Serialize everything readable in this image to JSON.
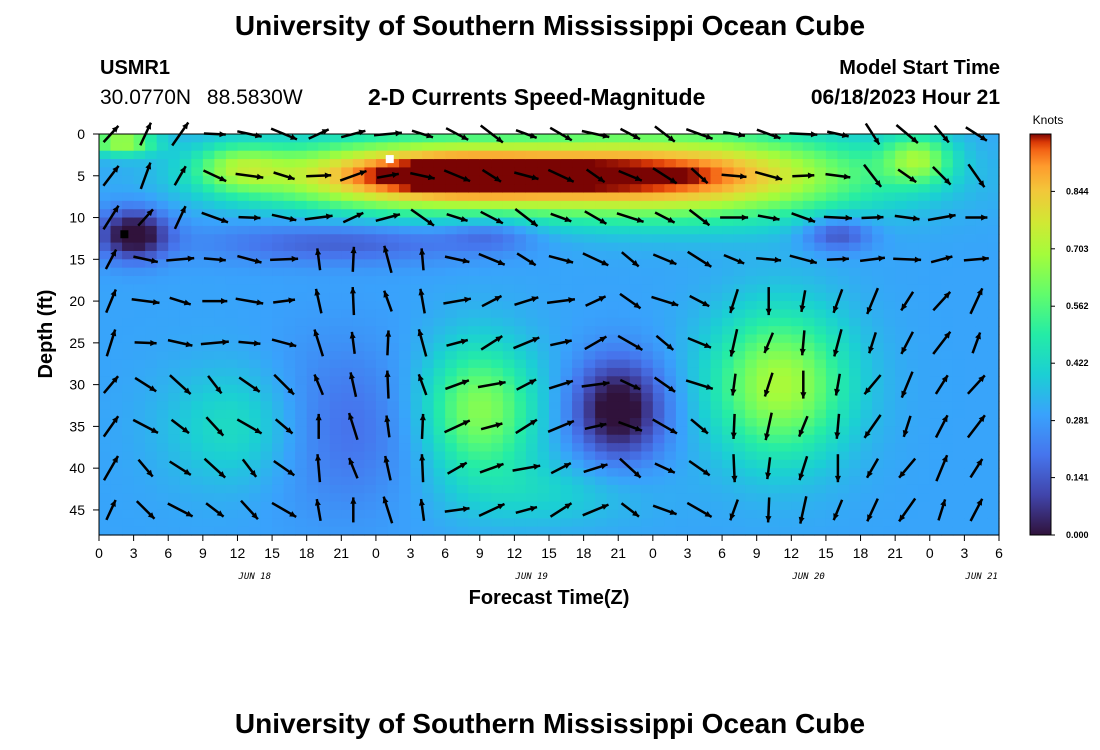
{
  "header": {
    "title": "University of Southern Mississippi Ocean Cube",
    "station": "USMR1",
    "lat": "30.0770N",
    "lon": "88.5830W",
    "subtitle": "2-D Currents Speed-Magnitude",
    "model_start_label": "Model Start Time",
    "model_start_value": "06/18/2023 Hour 21"
  },
  "footer": {
    "title": "University of Southern Mississippi Ocean Cube"
  },
  "chart_data": {
    "type": "heatmap",
    "title": "2-D Currents Speed-Magnitude",
    "xlabel": "Forecast Time(Z)",
    "ylabel": "Depth (ft)",
    "x_tick_labels": [
      "0",
      "3",
      "6",
      "9",
      "12",
      "15",
      "18",
      "21",
      "0",
      "3",
      "6",
      "9",
      "12",
      "15",
      "18",
      "21",
      "0",
      "3",
      "6",
      "9",
      "12",
      "15",
      "18",
      "21",
      "0",
      "3",
      "6"
    ],
    "date_labels": [
      {
        "label": "JUN 18",
        "tick_index": 4
      },
      {
        "label": "JUN 19",
        "tick_index": 12
      },
      {
        "label": "JUN 20",
        "tick_index": 20
      },
      {
        "label": "JUN 21",
        "tick_index": 25
      }
    ],
    "y_ticks": [
      0,
      5,
      10,
      15,
      20,
      25,
      30,
      35,
      40,
      45
    ],
    "ylim": [
      0,
      48
    ],
    "y_inverted": true,
    "colorbar": {
      "title": "Knots",
      "ticks": [
        "0.000",
        "0.141",
        "0.281",
        "0.422",
        "0.562",
        "0.703",
        "0.844"
      ],
      "range": [
        0,
        0.985
      ]
    },
    "arrow_depths": [
      0,
      5,
      10,
      15,
      20,
      25,
      30,
      35,
      40,
      45
    ],
    "arrow_times": [
      0,
      3,
      6,
      9,
      12,
      15,
      18,
      21,
      24,
      27,
      30,
      33,
      36,
      39,
      42,
      45,
      48,
      51,
      54,
      57,
      60,
      63,
      66,
      69,
      72,
      75
    ],
    "direction_zones": [
      {
        "t0": 0,
        "t1": 3,
        "d0": 0,
        "d1": 48,
        "angle": 60
      },
      {
        "t0": 3,
        "t1": 9,
        "d0": 0,
        "d1": 12,
        "angle": 60
      },
      {
        "t0": 3,
        "t1": 18,
        "d0": 12,
        "d1": 30,
        "angle": -5
      },
      {
        "t0": 3,
        "t1": 18,
        "d0": 30,
        "d1": 48,
        "angle": -40
      },
      {
        "t0": 9,
        "t1": 18,
        "d0": 0,
        "d1": 12,
        "angle": -15
      },
      {
        "t0": 18,
        "t1": 27,
        "d0": 0,
        "d1": 12,
        "angle": 15
      },
      {
        "t0": 18,
        "t1": 30,
        "d0": 12,
        "d1": 48,
        "angle": 100
      },
      {
        "t0": 27,
        "t1": 45,
        "d0": 0,
        "d1": 16,
        "angle": -25
      },
      {
        "t0": 30,
        "t1": 45,
        "d0": 16,
        "d1": 48,
        "angle": 20
      },
      {
        "t0": 45,
        "t1": 54,
        "d0": 0,
        "d1": 48,
        "angle": -30
      },
      {
        "t0": 54,
        "t1": 66,
        "d0": 0,
        "d1": 16,
        "angle": -10
      },
      {
        "t0": 54,
        "t1": 66,
        "d0": 16,
        "d1": 48,
        "angle": -100
      },
      {
        "t0": 66,
        "t1": 78,
        "d0": 0,
        "d1": 10,
        "angle": -45
      },
      {
        "t0": 66,
        "t1": 78,
        "d0": 10,
        "d1": 18,
        "angle": 5
      },
      {
        "t0": 66,
        "t1": 72,
        "d0": 18,
        "d1": 48,
        "angle": -120
      },
      {
        "t0": 72,
        "t1": 78,
        "d0": 18,
        "d1": 48,
        "angle": 60
      }
    ],
    "speed_field": {
      "base": 0.3,
      "components": [
        {
          "t": 28,
          "d": 5,
          "st": 14,
          "sd": 4,
          "a": 0.7
        },
        {
          "t": 50,
          "d": 5,
          "st": 16,
          "sd": 5,
          "a": 0.65
        },
        {
          "t": 2,
          "d": 1,
          "st": 3,
          "sd": 1.5,
          "a": 0.4
        },
        {
          "t": 12,
          "d": 4,
          "st": 4,
          "sd": 3,
          "a": 0.25
        },
        {
          "t": 71,
          "d": 3,
          "st": 3,
          "sd": 3,
          "a": 0.3
        },
        {
          "t": 3,
          "d": 12,
          "st": 3,
          "sd": 3,
          "a": -0.35
        },
        {
          "t": 21,
          "d": 13,
          "st": 12,
          "sd": 2.5,
          "a": -0.15
        },
        {
          "t": 34,
          "d": 12,
          "st": 4,
          "sd": 2,
          "a": -0.12
        },
        {
          "t": 64,
          "d": 12,
          "st": 3,
          "sd": 2,
          "a": -0.2
        },
        {
          "t": 21,
          "d": 35,
          "st": 7,
          "sd": 10,
          "a": -0.12
        },
        {
          "t": 45,
          "d": 33,
          "st": 4,
          "sd": 6,
          "a": -0.35
        },
        {
          "t": 33,
          "d": 33,
          "st": 5,
          "sd": 8,
          "a": 0.35
        },
        {
          "t": 59,
          "d": 30,
          "st": 6,
          "sd": 9,
          "a": 0.4
        },
        {
          "t": 12,
          "d": 35,
          "st": 6,
          "sd": 7,
          "a": 0.15
        },
        {
          "t": 39,
          "d": 43,
          "st": 8,
          "sd": 4,
          "a": 0.1
        }
      ]
    },
    "markers": [
      {
        "t": 2.2,
        "d": 12,
        "color": "#000000"
      },
      {
        "t": 25.2,
        "d": 3,
        "color": "#ffffff"
      }
    ]
  }
}
